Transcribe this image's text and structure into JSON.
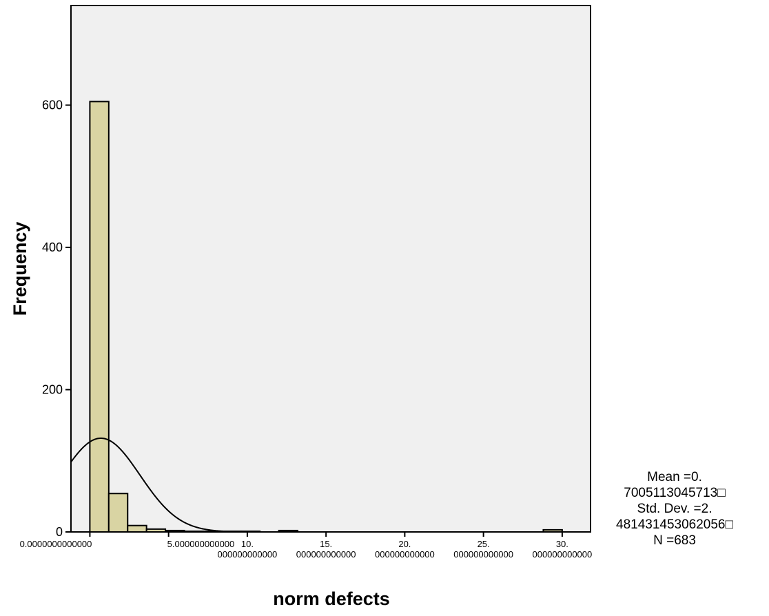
{
  "chart_data": {
    "type": "bar",
    "subtype": "histogram",
    "title": "",
    "xlabel": "norm defects",
    "ylabel": "Frequency",
    "xlim": [
      -1.2,
      31.8
    ],
    "ylim": [
      0,
      740
    ],
    "bin_width": 1.2,
    "bins": [
      {
        "start": 0.0,
        "end": 1.2,
        "count": 605
      },
      {
        "start": 1.2,
        "end": 2.4,
        "count": 54
      },
      {
        "start": 2.4,
        "end": 3.6,
        "count": 9
      },
      {
        "start": 3.6,
        "end": 4.8,
        "count": 4
      },
      {
        "start": 4.8,
        "end": 6.0,
        "count": 2
      },
      {
        "start": 6.0,
        "end": 7.2,
        "count": 1
      },
      {
        "start": 7.2,
        "end": 8.4,
        "count": 1
      },
      {
        "start": 8.4,
        "end": 9.6,
        "count": 1
      },
      {
        "start": 9.6,
        "end": 10.8,
        "count": 1
      },
      {
        "start": 10.8,
        "end": 12.0,
        "count": 0
      },
      {
        "start": 12.0,
        "end": 13.2,
        "count": 2
      },
      {
        "start": 28.8,
        "end": 30.0,
        "count": 3
      }
    ],
    "yticks": [
      0,
      200,
      400,
      600
    ],
    "ytick_labels": [
      "0",
      "200",
      "400",
      "600"
    ],
    "xticks": [
      {
        "value": 0,
        "lines": [
          "0.0000000000000"
        ]
      },
      {
        "value": 5,
        "lines": [
          "5.000000000000"
        ]
      },
      {
        "value": 10,
        "lines": [
          "10.",
          "000000000000"
        ]
      },
      {
        "value": 15,
        "lines": [
          "15.",
          "000000000000"
        ]
      },
      {
        "value": 20,
        "lines": [
          "20.",
          "000000000000"
        ]
      },
      {
        "value": 25,
        "lines": [
          "25.",
          "000000000000"
        ]
      },
      {
        "value": 30,
        "lines": [
          "30.",
          "000000000000"
        ]
      }
    ],
    "normal_curve": {
      "mean": 0.7005113045713,
      "sd": 2.481431453062056,
      "n": 683
    },
    "colors": {
      "plot_bg": "#f0f0f0",
      "bar_fill": "#d9d4a3",
      "stroke": "#000000"
    },
    "grid": false,
    "legend": "none"
  },
  "stats": {
    "line1": "Mean =0.",
    "line2": "7005113045713□",
    "line3": "Std. Dev. =2.",
    "line4": "481431453062056□",
    "line5": "N =683"
  }
}
